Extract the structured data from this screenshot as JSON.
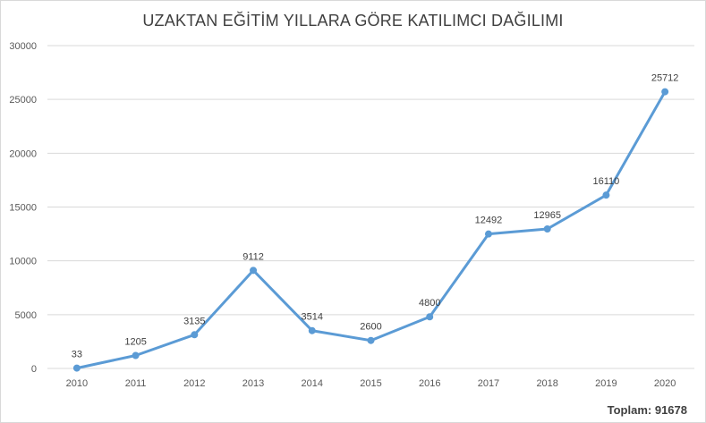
{
  "chart_data": {
    "type": "line",
    "title": "UZAKTAN EĞİTİM YILLARA GÖRE KATILIMCI DAĞILIMI",
    "categories": [
      "2010",
      "2011",
      "2012",
      "2013",
      "2014",
      "2015",
      "2016",
      "2017",
      "2018",
      "2019",
      "2020"
    ],
    "series": [
      {
        "values": [
          33,
          1205,
          3135,
          9112,
          3514,
          2600,
          4800,
          12492,
          12965,
          16110,
          25712
        ]
      }
    ],
    "data_labels": [
      "33",
      "1205",
      "3135",
      "9112",
      "3514",
      "2600",
      "4800",
      "12492",
      "12965",
      "16110",
      "25712"
    ],
    "ylim": [
      0,
      30000
    ],
    "yticks": [
      0,
      5000,
      10000,
      15000,
      20000,
      25000,
      30000
    ],
    "ytick_labels": [
      "0",
      "5000",
      "10000",
      "15000",
      "20000",
      "25000",
      "30000"
    ],
    "grid": true,
    "line_color": "#5b9bd5",
    "grid_color": "#d9d9d9"
  },
  "footer": {
    "total_label": "Toplam:",
    "total_value": "91678"
  }
}
